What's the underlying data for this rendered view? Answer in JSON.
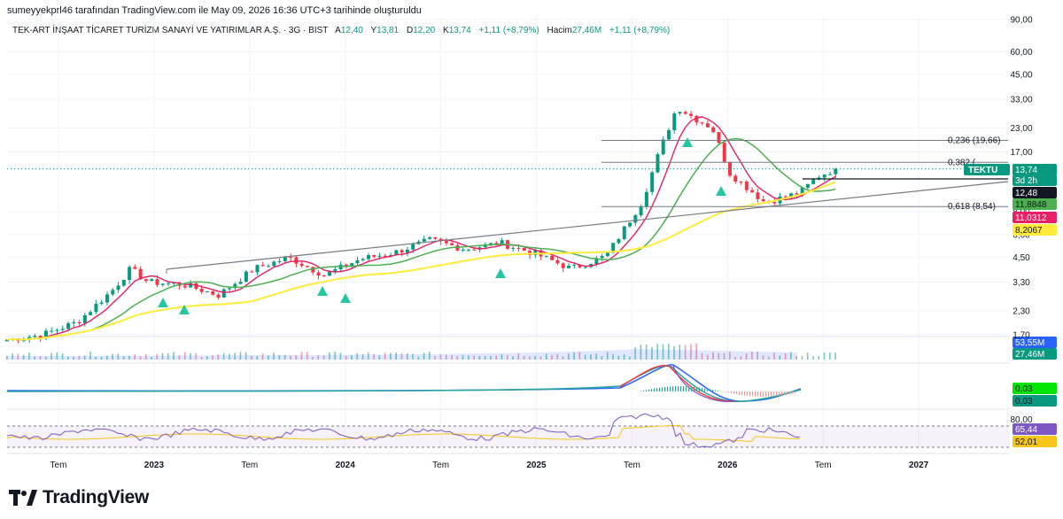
{
  "header": {
    "credit": "sumeyyekprl46 tarafından TradingView.com ile May 09, 2026 16:36 UTC+3 tarihinde oluşturuldu",
    "symbol": "TEK-ART İNŞAAT TİCARET TURİZM SANAYİ VE YATIRIMLAR A.Ş. · 3G · BIST",
    "o_key": "A",
    "o_val": "12,40",
    "h_key": "Y",
    "h_val": "13,81",
    "l_key": "D",
    "l_val": "12,20",
    "c_key": "K",
    "c_val": "13,74",
    "change": "+1,11 (+8,79%)",
    "vol_key": "Hacim",
    "vol_val": "27,46M",
    "vol_change": "+1,11 (+8,79%)"
  },
  "branding": {
    "logo_text": "TradingView",
    "logo_icon": "tradingview-logo-icon"
  },
  "colors": {
    "up": "#089981",
    "down": "#f23645",
    "ma_red": "#e91e63",
    "ma_green": "#4caf50",
    "ma_yellow": "#ffeb3b",
    "fib": "#787b86",
    "rsi": "#7e57c2",
    "macd_blue": "#2962ff"
  },
  "chart_data": {
    "type": "line",
    "title": "TEK-ART İNŞAAT TİCARET TURİZM SANAYİ VE YATIRIMLAR A.Ş. · 3G · BIST",
    "y_scale": "log",
    "price_axis_ticks": [
      "90,00",
      "60,00",
      "45,00",
      "33,00",
      "23,00",
      "17,00",
      "12,48",
      "8,00",
      "6,00",
      "4,50",
      "3,30",
      "2,30",
      "1,70"
    ],
    "x_ticks": [
      {
        "label": "Tem",
        "bold": false
      },
      {
        "label": "2023",
        "bold": true
      },
      {
        "label": "Tem",
        "bold": false
      },
      {
        "label": "2024",
        "bold": true
      },
      {
        "label": "Tem",
        "bold": false
      },
      {
        "label": "2025",
        "bold": true
      },
      {
        "label": "Tem",
        "bold": false
      },
      {
        "label": "2026",
        "bold": true
      },
      {
        "label": "Tem",
        "bold": false
      },
      {
        "label": "2027",
        "bold": true
      }
    ],
    "price_path": [
      [
        "2022-06",
        1.6
      ],
      [
        "2022-08",
        1.7
      ],
      [
        "2022-10",
        2.0
      ],
      [
        "2022-12",
        3.0
      ],
      [
        "2023-01",
        3.9
      ],
      [
        "2023-02",
        3.3
      ],
      [
        "2023-04",
        3.2
      ],
      [
        "2023-06",
        2.8
      ],
      [
        "2023-08",
        3.9
      ],
      [
        "2023-10",
        4.5
      ],
      [
        "2023-12",
        3.6
      ],
      [
        "2024-02",
        4.4
      ],
      [
        "2024-04",
        4.8
      ],
      [
        "2024-06",
        5.6
      ],
      [
        "2024-08",
        5.0
      ],
      [
        "2024-10",
        5.4
      ],
      [
        "2024-12",
        4.7
      ],
      [
        "2025-02",
        3.9
      ],
      [
        "2025-04",
        4.6
      ],
      [
        "2025-06",
        9.0
      ],
      [
        "2025-07",
        17.0
      ],
      [
        "2025-08",
        30.0
      ],
      [
        "2025-09",
        26.0
      ],
      [
        "2025-10",
        23.0
      ],
      [
        "2025-11",
        13.0
      ],
      [
        "2026-01",
        9.0
      ],
      [
        "2026-03",
        10.2
      ],
      [
        "2026-04",
        12.5
      ],
      [
        "2026-05",
        13.74
      ]
    ],
    "series": [
      {
        "name": "TEKTU",
        "last": "13,74",
        "countdown": "3d 2h",
        "color": "#089981"
      },
      {
        "name": "",
        "last": "12,48",
        "color": "#131722"
      },
      {
        "name": "",
        "last": "11,8848",
        "color": "#4caf50"
      },
      {
        "name": "",
        "last": "11,0312",
        "color": "#e91e63"
      },
      {
        "name": "",
        "last": "8,2067",
        "color": "#ffeb3b"
      }
    ],
    "fib_levels": [
      {
        "label": "0,236 (19,66)",
        "value": 19.66
      },
      {
        "label": "0,382 (",
        "value": 14.9
      },
      {
        "label": "0,618 (8,54)",
        "value": 8.54
      }
    ],
    "volume": {
      "labels": [
        "53,55M",
        "27,46M"
      ]
    },
    "macd": {
      "labels": [
        "0,03",
        "0,03"
      ]
    },
    "rsi": {
      "value": "65,44",
      "signal": "52,01",
      "upper": "80,00",
      "upper_band": 70,
      "lower_band": 30
    }
  }
}
